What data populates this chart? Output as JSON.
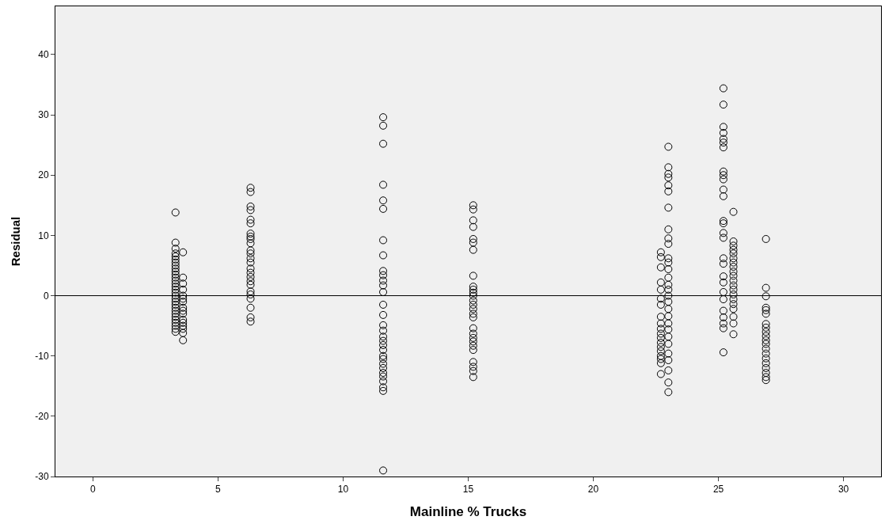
{
  "chart_data": {
    "type": "scatter",
    "xlabel": "Mainline % Trucks",
    "ylabel": "Residual",
    "xlim": [
      -1.5,
      31.5
    ],
    "ylim": [
      -30,
      48
    ],
    "xticks": [
      0,
      5,
      10,
      15,
      20,
      25,
      30
    ],
    "yticks": [
      -30,
      -20,
      -10,
      0,
      10,
      20,
      30,
      40
    ],
    "grid": false,
    "marker": "circle",
    "ref_lines": [
      {
        "axis": "y",
        "value": 0,
        "color": "#000000"
      }
    ],
    "series": [
      {
        "color": "#000000",
        "x": [
          3.3,
          3.3,
          3.3,
          3.3,
          3.3,
          3.3,
          3.3,
          3.3,
          3.3,
          3.3,
          3.3,
          3.3,
          3.3,
          3.3,
          3.3,
          3.3,
          3.3,
          3.3,
          3.3,
          3.3,
          3.3,
          3.3,
          3.3,
          3.3,
          3.3,
          3.3,
          3.3,
          3.3,
          3.3,
          3.3,
          3.6,
          3.6,
          3.6,
          3.6,
          3.6,
          3.6,
          3.6,
          3.6,
          3.6,
          3.6,
          3.6,
          3.6,
          3.6,
          3.6,
          3.6,
          3.6,
          6.3,
          6.3,
          6.3,
          6.3,
          6.3,
          6.3,
          6.3,
          6.3,
          6.3,
          6.3,
          6.3,
          6.3,
          6.3,
          6.3,
          6.3,
          6.3,
          6.3,
          6.3,
          6.3,
          6.3,
          6.3,
          6.3,
          6.3,
          6.3,
          6.3,
          11.6,
          11.6,
          11.6,
          11.6,
          11.6,
          11.6,
          11.6,
          11.6,
          11.6,
          11.6,
          11.6,
          11.6,
          11.6,
          11.6,
          11.6,
          11.6,
          11.6,
          11.6,
          11.6,
          11.6,
          11.6,
          11.6,
          11.6,
          11.6,
          11.6,
          11.6,
          11.6,
          11.6,
          11.6,
          11.6,
          11.6,
          15.2,
          15.2,
          15.2,
          15.2,
          15.2,
          15.2,
          15.2,
          15.2,
          15.2,
          15.2,
          15.2,
          15.2,
          15.2,
          15.2,
          15.2,
          15.2,
          15.2,
          15.2,
          15.2,
          15.2,
          15.2,
          15.2,
          15.2,
          15.2,
          15.2,
          15.2,
          15.2,
          22.7,
          22.7,
          22.7,
          22.7,
          22.7,
          22.7,
          22.7,
          22.7,
          22.7,
          22.7,
          22.7,
          22.7,
          22.7,
          22.7,
          22.7,
          22.7,
          22.7,
          22.7,
          22.7,
          23.0,
          23.0,
          23.0,
          23.0,
          23.0,
          23.0,
          23.0,
          23.0,
          23.0,
          23.0,
          23.0,
          23.0,
          23.0,
          23.0,
          23.0,
          23.0,
          23.0,
          23.0,
          23.0,
          23.0,
          23.0,
          23.0,
          23.0,
          23.0,
          23.0,
          23.0,
          23.0,
          23.0,
          23.0,
          25.2,
          25.2,
          25.2,
          25.2,
          25.2,
          25.2,
          25.2,
          25.2,
          25.2,
          25.2,
          25.2,
          25.2,
          25.2,
          25.2,
          25.2,
          25.2,
          25.2,
          25.2,
          25.2,
          25.2,
          25.2,
          25.2,
          25.2,
          25.2,
          25.2,
          25.2,
          25.2,
          25.6,
          25.6,
          25.6,
          25.6,
          25.6,
          25.6,
          25.6,
          25.6,
          25.6,
          25.6,
          25.6,
          25.6,
          25.6,
          25.6,
          25.6,
          25.6,
          25.6,
          25.6,
          25.6,
          25.6,
          26.9,
          26.9,
          26.9,
          26.9,
          26.9,
          26.9,
          26.9,
          26.9,
          26.9,
          26.9,
          26.9,
          26.9,
          26.9,
          26.9,
          26.9,
          26.9,
          26.9,
          26.9,
          26.9,
          26.9
        ],
        "values": [
          13.8,
          8.8,
          7.8,
          7,
          6.5,
          6,
          5.5,
          5,
          4.5,
          4,
          3.5,
          3,
          2.5,
          2,
          1.5,
          1,
          0.5,
          0,
          -0.5,
          -1,
          -1.5,
          -2,
          -2.5,
          -3,
          -3.5,
          -4,
          -4.5,
          -5,
          -5.5,
          -6,
          7.2,
          3,
          2,
          1,
          0,
          -0.5,
          -1,
          -2,
          -2.5,
          -3,
          -4,
          -4.5,
          -5,
          -5.5,
          -6.2,
          -7.4,
          17.9,
          17.2,
          14.8,
          14.2,
          12.6,
          12,
          10.3,
          9.8,
          9.4,
          8.7,
          7.5,
          7,
          6.2,
          5.5,
          4.5,
          3.8,
          3.1,
          2.4,
          1.8,
          0.7,
          0.2,
          -0.5,
          -2,
          -3.6,
          -4.3,
          29.6,
          28.2,
          25.2,
          18.4,
          15.8,
          14.4,
          9.2,
          6.7,
          4.1,
          3.4,
          2.5,
          1.7,
          0.6,
          -1.5,
          -3.2,
          -4.9,
          -5.8,
          -6.8,
          -7.5,
          -8.2,
          -9,
          -10,
          -10.5,
          -11.3,
          -12,
          -12.8,
          -13.4,
          -14.2,
          -15.2,
          -15.8,
          -29,
          15,
          14.3,
          12.5,
          11.4,
          9.4,
          8.8,
          7.6,
          3.3,
          1.5,
          1,
          0.5,
          0,
          -0.8,
          -1.5,
          -2.2,
          -3,
          -3.6,
          -5.4,
          -6.3,
          -7,
          -7.6,
          -8.3,
          -9,
          -11,
          -11.8,
          -12.5,
          -13.5,
          7.2,
          6.4,
          4.7,
          2.2,
          1,
          -0.5,
          -1.5,
          -3.5,
          -4.6,
          -5.5,
          -6.3,
          -7,
          -7.8,
          -8.5,
          -9.2,
          -10,
          -10.5,
          -11.2,
          -13,
          24.7,
          21.3,
          20.2,
          19.6,
          18.3,
          17.3,
          14.6,
          11,
          9.5,
          8.6,
          6.2,
          5.5,
          4.4,
          3,
          1.8,
          1,
          0,
          -1,
          -2.2,
          -3.4,
          -4.6,
          -5.6,
          -6.8,
          -8,
          -9.6,
          -10.7,
          -12.4,
          -14.4,
          -16,
          34.4,
          31.7,
          28,
          27,
          26,
          25.4,
          24.6,
          20.6,
          20,
          19.3,
          17.6,
          16.5,
          12.4,
          12,
          10.4,
          9.6,
          6.2,
          5.3,
          3.2,
          2.2,
          0.6,
          -0.6,
          -2.5,
          -3.6,
          -4.6,
          -5.4,
          -9.4,
          13.9,
          9,
          8.3,
          7.6,
          7,
          6.2,
          5.5,
          4.8,
          4,
          3.3,
          2.5,
          1.7,
          1,
          0.2,
          -0.6,
          -1.4,
          -2.2,
          -3.5,
          -4.6,
          -6.4,
          9.4,
          1.3,
          -0.1,
          -2,
          -2.4,
          -3,
          -4.7,
          -5.3,
          -6,
          -6.7,
          -7.4,
          -8,
          -8.8,
          -9.6,
          -10.4,
          -11.2,
          -12,
          -12.8,
          -13.5,
          -14
        ]
      }
    ]
  }
}
